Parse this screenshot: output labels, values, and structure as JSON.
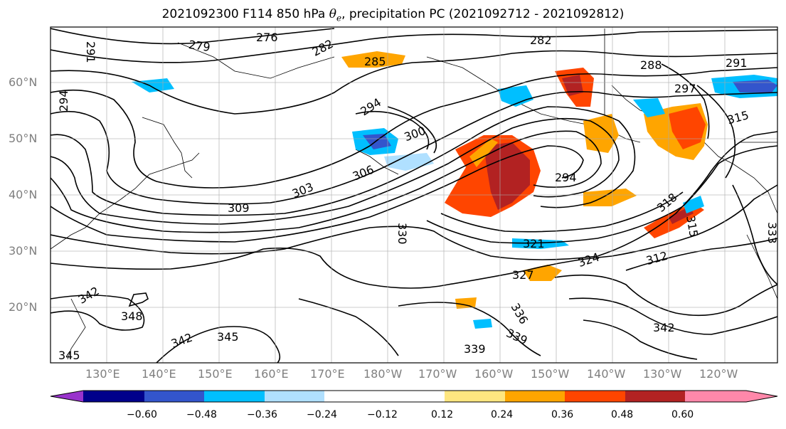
{
  "title": {
    "prefix": "2021092300 F114 850 hPa ",
    "symbol": "θ",
    "subscript": "e",
    "suffix": ", precipitation PC (2021092712 - 2021092812)"
  },
  "lat_labels": [
    "60°N",
    "50°N",
    "40°N",
    "30°N",
    "20°N"
  ],
  "lon_labels": [
    "130°E",
    "140°E",
    "150°E",
    "160°E",
    "170°E",
    "180°W",
    "170°W",
    "160°W",
    "150°W",
    "140°W",
    "130°W",
    "120°W"
  ],
  "contour_labels": [
    "276",
    "279",
    "282",
    "282",
    "285",
    "288",
    "291",
    "291",
    "294",
    "294",
    "294",
    "297",
    "300",
    "303",
    "306",
    "309",
    "312",
    "315",
    "315",
    "318",
    "321",
    "324",
    "327",
    "330",
    "333",
    "336",
    "339",
    "339",
    "342",
    "342",
    "342",
    "345",
    "345",
    "348"
  ],
  "colorbar": {
    "ticks": [
      "−0.60",
      "−0.48",
      "−0.36",
      "−0.24",
      "−0.12",
      "0.12",
      "0.24",
      "0.36",
      "0.48",
      "0.60"
    ],
    "colors": [
      "#9933cc",
      "#00008b",
      "#3355cc",
      "#00bfff",
      "#b0e0ff",
      "#ffffff",
      "#ffe680",
      "#ffa500",
      "#ff4500",
      "#b22222",
      "#ff88aa"
    ]
  },
  "legend_colors": {
    "strong_negative": "#3355cc",
    "negative": "#00bfff",
    "weak_negative": "#b0e0ff",
    "weak_positive": "#ffe680",
    "positive": "#ffa500",
    "strong_positive": "#ff4500",
    "max_positive": "#b22222"
  }
}
